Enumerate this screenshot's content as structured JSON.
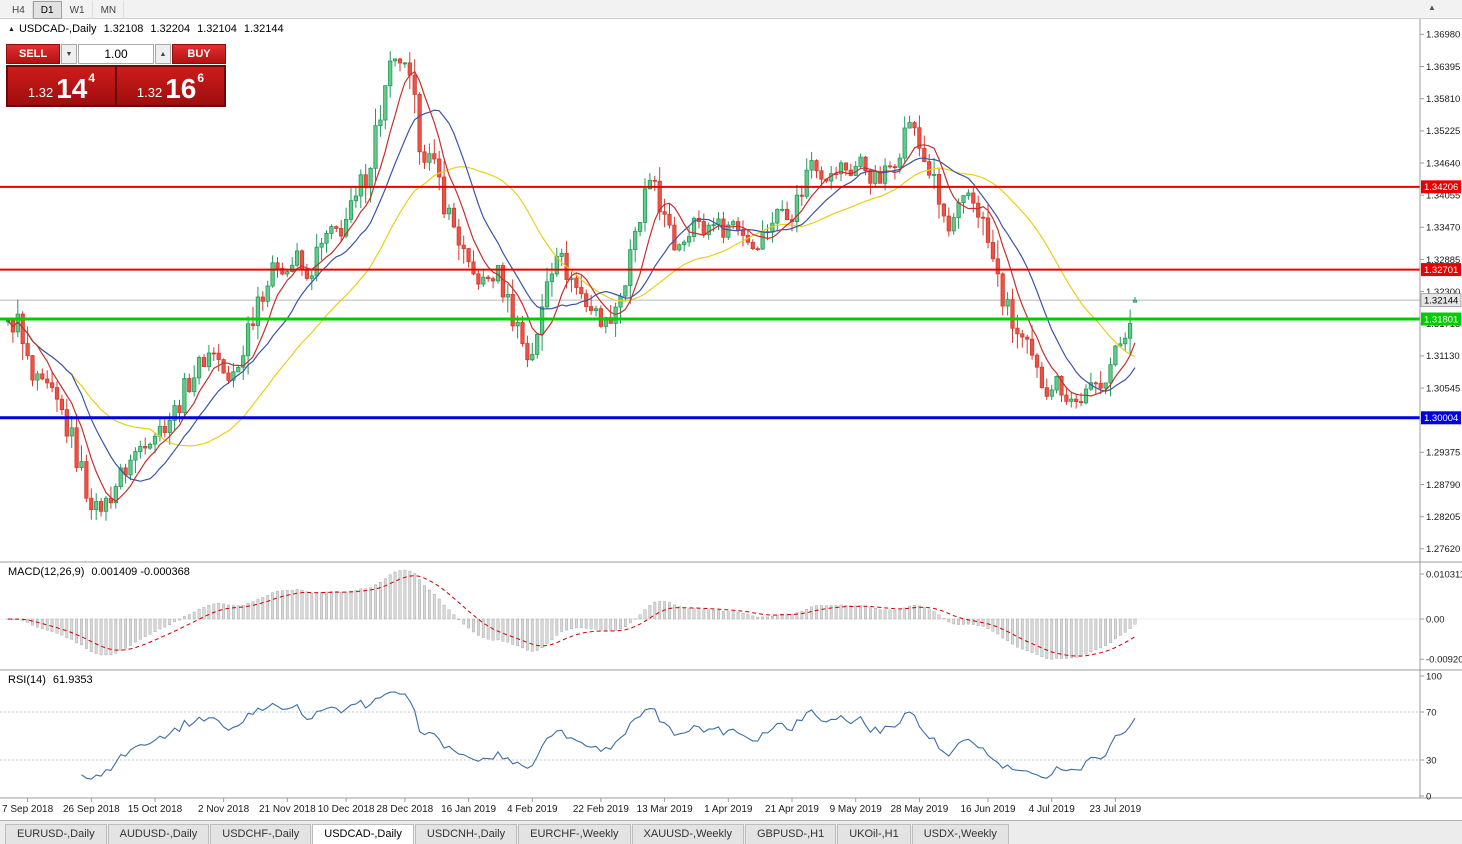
{
  "toolbar": {
    "timeframes": [
      "H4",
      "D1",
      "W1",
      "MN"
    ],
    "active_timeframe": "D1",
    "arrow_icon": "▲"
  },
  "chart_title": {
    "marker_icon": "▲",
    "symbol": "USDCAD-,Daily",
    "open": "1.32108",
    "high": "1.32204",
    "low": "1.32104",
    "close": "1.32144"
  },
  "trade_panel": {
    "sell_label": "SELL",
    "buy_label": "BUY",
    "volume": "1.00",
    "step_down_icon": "▼",
    "step_up_icon": "▲",
    "sell_price": {
      "prefix": "1.32",
      "main": "14",
      "sup": "4"
    },
    "buy_price": {
      "prefix": "1.32",
      "main": "16",
      "sup": "6"
    }
  },
  "indicators": {
    "macd_label": "MACD(12,26,9)",
    "macd_values": "0.001409 -0.000368",
    "rsi_label": "RSI(14)",
    "rsi_value": "61.9353"
  },
  "tabs": {
    "items": [
      "EURUSD-,Daily",
      "AUDUSD-,Daily",
      "USDCHF-,Daily",
      "USDCAD-,Daily",
      "USDCNH-,Daily",
      "EURCHF-,Weekly",
      "XAUUSD-,Weekly",
      "GBPUSD-,H1",
      "UKOil-,H1",
      "USDX-,Weekly"
    ],
    "active": "USDCAD-,Daily"
  },
  "chart_data": {
    "type": "candlestick",
    "title": "USDCAD-,Daily",
    "ylim": [
      1.2738,
      1.3706
    ],
    "candle_count": 231,
    "price_axis_labels": [
      "1.36980",
      "1.36395",
      "1.35810",
      "1.35225",
      "1.34640",
      "1.34055",
      "1.33470",
      "1.32885",
      "1.32300",
      "1.31715",
      "1.31130",
      "1.30545",
      "1.29960",
      "1.29375",
      "1.28790",
      "1.28205",
      "1.27620"
    ],
    "x_axis_dates": [
      {
        "i": 4,
        "t": "7 Sep 2018"
      },
      {
        "i": 17,
        "t": "26 Sep 2018"
      },
      {
        "i": 30,
        "t": "15 Oct 2018"
      },
      {
        "i": 44,
        "t": "2 Nov 2018"
      },
      {
        "i": 57,
        "t": "21 Nov 2018"
      },
      {
        "i": 69,
        "t": "10 Dec 2018"
      },
      {
        "i": 81,
        "t": "28 Dec 2018"
      },
      {
        "i": 94,
        "t": "16 Jan 2019"
      },
      {
        "i": 107,
        "t": "4 Feb 2019"
      },
      {
        "i": 121,
        "t": "22 Feb 2019"
      },
      {
        "i": 134,
        "t": "13 Mar 2019"
      },
      {
        "i": 147,
        "t": "1 Apr 2019"
      },
      {
        "i": 160,
        "t": "21 Apr 2019"
      },
      {
        "i": 173,
        "t": "9 May 2019"
      },
      {
        "i": 186,
        "t": "28 May 2019"
      },
      {
        "i": 200,
        "t": "16 Jun 2019"
      },
      {
        "i": 213,
        "t": "4 Jul 2019"
      },
      {
        "i": 226,
        "t": "23 Jul 2019"
      }
    ],
    "price_anchors": [
      [
        0,
        1.3168
      ],
      [
        2,
        1.3175
      ],
      [
        3,
        1.3128
      ],
      [
        5,
        1.3066
      ],
      [
        8,
        1.3052
      ],
      [
        11,
        1.3008
      ],
      [
        14,
        1.2932
      ],
      [
        16,
        1.2872
      ],
      [
        18,
        1.2833
      ],
      [
        20,
        1.2845
      ],
      [
        22,
        1.288
      ],
      [
        25,
        1.2922
      ],
      [
        28,
        1.2962
      ],
      [
        31,
        1.298
      ],
      [
        34,
        1.3012
      ],
      [
        37,
        1.3068
      ],
      [
        40,
        1.3108
      ],
      [
        42,
        1.3125
      ],
      [
        45,
        1.3062
      ],
      [
        47,
        1.3095
      ],
      [
        49,
        1.3165
      ],
      [
        51,
        1.3222
      ],
      [
        53,
        1.3248
      ],
      [
        55,
        1.3282
      ],
      [
        57,
        1.3268
      ],
      [
        59,
        1.3292
      ],
      [
        61,
        1.3248
      ],
      [
        63,
        1.3295
      ],
      [
        65,
        1.3328
      ],
      [
        68,
        1.3345
      ],
      [
        71,
        1.3392
      ],
      [
        74,
        1.3478
      ],
      [
        76,
        1.3558
      ],
      [
        78,
        1.3628
      ],
      [
        80,
        1.3652
      ],
      [
        82,
        1.3598
      ],
      [
        84,
        1.3515
      ],
      [
        86,
        1.3468
      ],
      [
        88,
        1.3428
      ],
      [
        90,
        1.3368
      ],
      [
        92,
        1.3328
      ],
      [
        94,
        1.3262
      ],
      [
        97,
        1.3248
      ],
      [
        100,
        1.3262
      ],
      [
        102,
        1.3212
      ],
      [
        104,
        1.3168
      ],
      [
        106,
        1.3112
      ],
      [
        108,
        1.3135
      ],
      [
        110,
        1.3262
      ],
      [
        112,
        1.3305
      ],
      [
        114,
        1.3268
      ],
      [
        116,
        1.3238
      ],
      [
        118,
        1.3212
      ],
      [
        120,
        1.3188
      ],
      [
        122,
        1.3172
      ],
      [
        124,
        1.3208
      ],
      [
        126,
        1.3248
      ],
      [
        128,
        1.3318
      ],
      [
        130,
        1.3398
      ],
      [
        132,
        1.3432
      ],
      [
        134,
        1.3352
      ],
      [
        136,
        1.3312
      ],
      [
        138,
        1.3332
      ],
      [
        140,
        1.3362
      ],
      [
        142,
        1.3338
      ],
      [
        144,
        1.3362
      ],
      [
        146,
        1.3342
      ],
      [
        148,
        1.3358
      ],
      [
        150,
        1.3338
      ],
      [
        152,
        1.3312
      ],
      [
        154,
        1.3332
      ],
      [
        156,
        1.3362
      ],
      [
        158,
        1.3382
      ],
      [
        160,
        1.3372
      ],
      [
        162,
        1.3418
      ],
      [
        164,
        1.3472
      ],
      [
        166,
        1.3448
      ],
      [
        168,
        1.3438
      ],
      [
        170,
        1.3458
      ],
      [
        172,
        1.3448
      ],
      [
        174,
        1.3468
      ],
      [
        176,
        1.3442
      ],
      [
        178,
        1.3432
      ],
      [
        180,
        1.3458
      ],
      [
        182,
        1.3498
      ],
      [
        184,
        1.3542
      ],
      [
        186,
        1.3492
      ],
      [
        188,
        1.3452
      ],
      [
        190,
        1.3388
      ],
      [
        192,
        1.3338
      ],
      [
        194,
        1.3372
      ],
      [
        196,
        1.3408
      ],
      [
        198,
        1.3382
      ],
      [
        200,
        1.3318
      ],
      [
        202,
        1.3248
      ],
      [
        204,
        1.3192
      ],
      [
        206,
        1.3152
      ],
      [
        208,
        1.3122
      ],
      [
        210,
        1.3078
      ],
      [
        212,
        1.3052
      ],
      [
        214,
        1.3068
      ],
      [
        216,
        1.3042
      ],
      [
        218,
        1.3028
      ],
      [
        220,
        1.3042
      ],
      [
        222,
        1.3058
      ],
      [
        224,
        1.3082
      ],
      [
        226,
        1.3112
      ],
      [
        228,
        1.3165
      ],
      [
        230,
        1.32144
      ]
    ],
    "last_candle": {
      "open": 1.32108,
      "high": 1.32204,
      "low": 1.32104,
      "close": 1.32144
    },
    "hlines": [
      {
        "price": 1.34206,
        "label": "1.34206",
        "color": "#e60000",
        "width": 2
      },
      {
        "price": 1.32701,
        "label": "1.32701",
        "color": "#e60000",
        "width": 2
      },
      {
        "price": 1.31801,
        "label": "1.31801",
        "color": "#00cc00",
        "width": 3
      },
      {
        "price": 1.30004,
        "label": "1.30004",
        "color": "#0000dd",
        "width": 3
      }
    ],
    "current_price": {
      "price": 1.32144,
      "label": "1.32144"
    },
    "moving_averages": [
      {
        "period": 30,
        "color": "#e8cf1a"
      },
      {
        "period": 14,
        "color": "#3b54a5"
      },
      {
        "period": 7,
        "color": "#c62f2f"
      }
    ],
    "macd": {
      "fast": 12,
      "slow": 26,
      "signal": 9,
      "scale_top": 0.010311,
      "axis_labels": [
        {
          "v": 0.010311,
          "t": "0.010311"
        },
        {
          "v": 0,
          "t": "0.00"
        },
        {
          "v": -0.009203,
          "t": "-0.009203"
        }
      ]
    },
    "rsi": {
      "period": 14,
      "levels": [
        70,
        30
      ],
      "axis_labels": [
        {
          "v": 100,
          "t": "100"
        },
        {
          "v": 70,
          "t": "70"
        },
        {
          "v": 30,
          "t": "30"
        },
        {
          "v": 0,
          "t": "0"
        }
      ]
    },
    "colors": {
      "up_stroke": "#1d9b58",
      "up_fill": "#66c98a",
      "down_stroke": "#cf3b30",
      "down_fill": "#ee5245",
      "macd_hist": "#d8d8d8",
      "macd_hist_stroke": "#a0a0a0",
      "macd_signal": "#cc0000",
      "rsi": "#3a6ea5",
      "current_line": "#b8b8b8"
    }
  }
}
